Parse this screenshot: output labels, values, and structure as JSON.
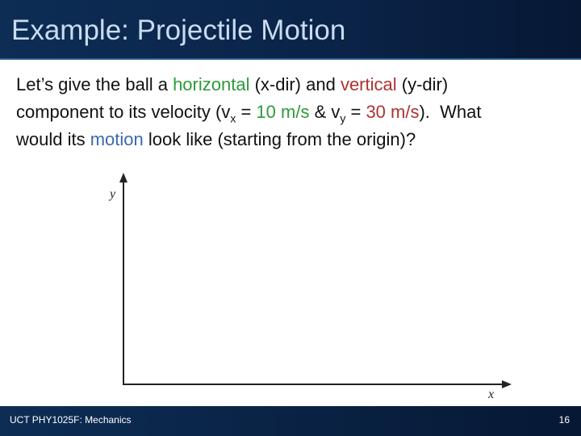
{
  "header": {
    "title": "Example: Projectile Motion"
  },
  "body": {
    "parts": [
      "Let’s give the ball a ",
      "horizontal",
      " (x-dir) and ",
      "vertical",
      " (y-dir)",
      "component to its velocity (v",
      "x",
      " = ",
      "10 m/s",
      " & v",
      "y",
      " = ",
      "30 m/s",
      ").  What",
      "would its ",
      "motion",
      " look like (starting from the origin)?"
    ]
  },
  "axes": {
    "y_label": "y",
    "x_label": "x"
  },
  "footer": {
    "course": "UCT PHY1025F: Mechanics",
    "page": "16"
  }
}
